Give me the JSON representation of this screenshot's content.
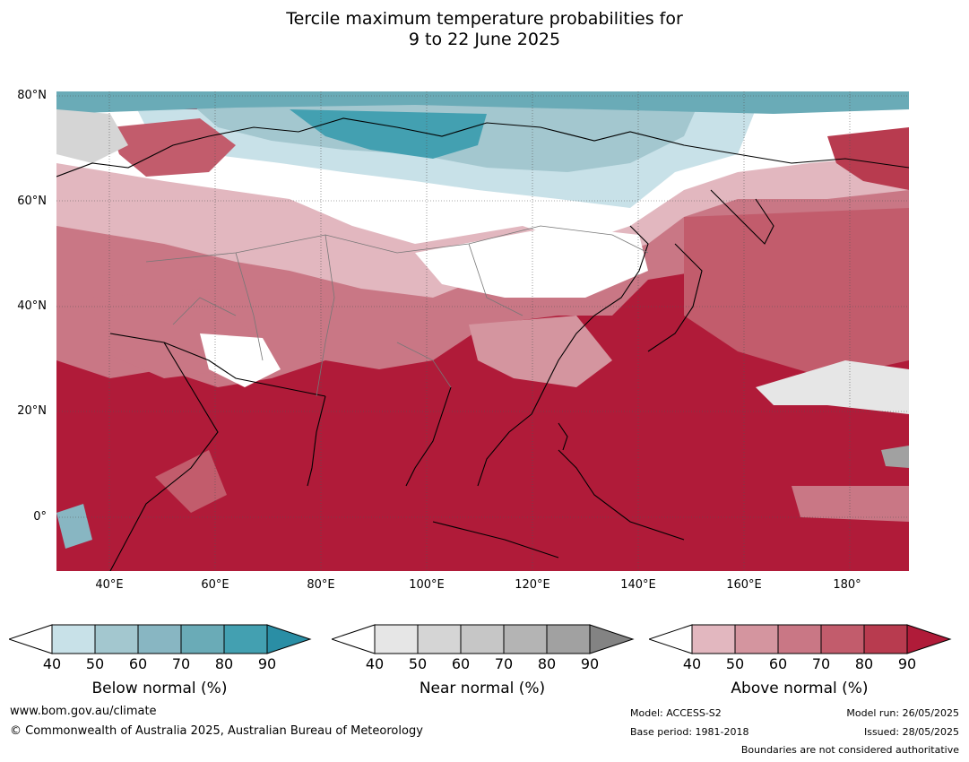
{
  "title_line1": "Tercile maximum temperature probabilities for",
  "title_line2": "9 to 22 June 2025",
  "map": {
    "lat_labels": [
      "80°N",
      "60°N",
      "40°N",
      "20°N",
      "0°"
    ],
    "lon_labels": [
      "40°E",
      "60°E",
      "80°E",
      "100°E",
      "120°E",
      "140°E",
      "160°E",
      "180°"
    ],
    "extent": {
      "lon_min": 30,
      "lon_max": 191,
      "lat_min": -10,
      "lat_max": 81
    },
    "lat_values": [
      80,
      60,
      40,
      20,
      0
    ],
    "lon_values": [
      40,
      60,
      80,
      100,
      120,
      140,
      160,
      180
    ],
    "gridlines": true
  },
  "legends": [
    {
      "title": "Below normal (%)",
      "ticks": [
        "40",
        "50",
        "60",
        "70",
        "80",
        "90"
      ],
      "colors": [
        "#ffffff",
        "#c8e1e8",
        "#a3c7cf",
        "#88b6c2",
        "#6aabb7",
        "#43a0b1",
        "#2a8ea5"
      ]
    },
    {
      "title": "Near normal (%)",
      "ticks": [
        "40",
        "50",
        "60",
        "70",
        "80",
        "90"
      ],
      "colors": [
        "#ffffff",
        "#e6e6e6",
        "#d5d5d5",
        "#c6c6c6",
        "#b4b4b4",
        "#a1a1a1",
        "#838383"
      ]
    },
    {
      "title": "Above normal (%)",
      "ticks": [
        "40",
        "50",
        "60",
        "70",
        "80",
        "90"
      ],
      "colors": [
        "#ffffff",
        "#e2b7bf",
        "#d4959f",
        "#c97785",
        "#c25c6c",
        "#b83b4f",
        "#b01b39"
      ]
    }
  ],
  "footer": {
    "site": "www.bom.gov.au/climate",
    "copyright": "© Commonwealth of Australia 2025, Australian Bureau of Meteorology",
    "model": "Model: ACCESS-S2",
    "base_period": "Base period: 1981-2018",
    "model_run": "Model run: 26/05/2025",
    "issued": "Issued: 28/05/2025",
    "boundary_note": "Boundaries are not considered authoritative"
  }
}
